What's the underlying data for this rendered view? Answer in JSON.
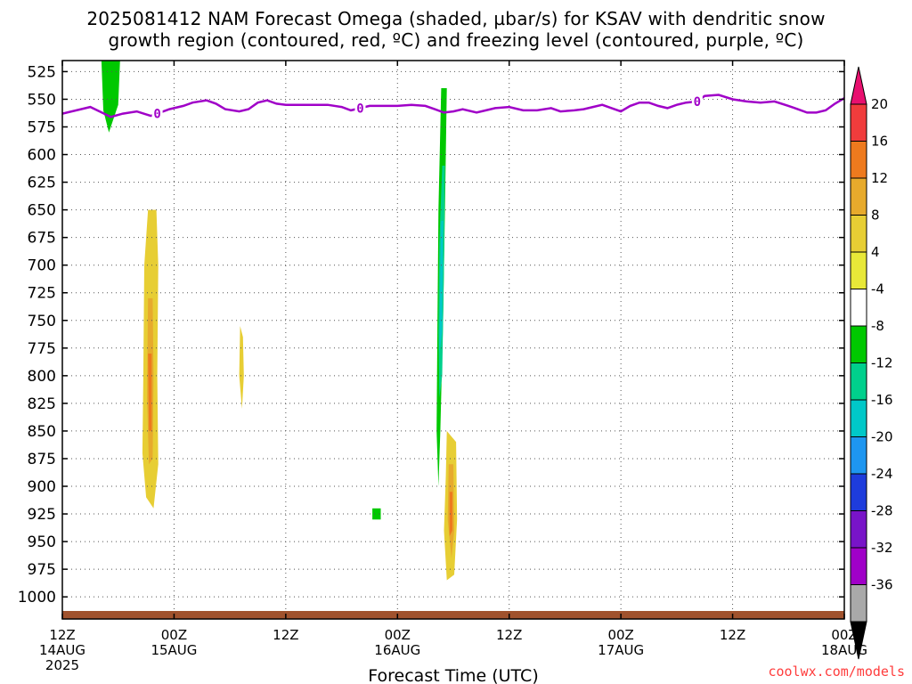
{
  "title": {
    "line1": "2025081412 NAM Forecast Omega (shaded, µbar/s) for KSAV with dendritic snow",
    "line2": "growth region (contoured, red, ºC) and freezing level (contoured, purple, ºC)"
  },
  "credit": "coolwx.com/models",
  "colors": {
    "freezing_contour": "#a000c8",
    "ground": "#a0522d",
    "grid": "#555555"
  },
  "chart_data": {
    "type": "heatmap",
    "xlabel": "Forecast Time (UTC)",
    "ylabel": "",
    "pressure_levels": [
      "525",
      "550",
      "575",
      "600",
      "625",
      "650",
      "675",
      "700",
      "725",
      "750",
      "775",
      "800",
      "825",
      "850",
      "875",
      "900",
      "925",
      "950",
      "975",
      "1000"
    ],
    "ylim": [
      1020,
      515
    ],
    "x_ticks": [
      {
        "h": 0,
        "line1": "12Z",
        "line2": "14AUG",
        "line3": "2025"
      },
      {
        "h": 12,
        "line1": "00Z",
        "line2": "15AUG",
        "line3": ""
      },
      {
        "h": 24,
        "line1": "12Z",
        "line2": "",
        "line3": ""
      },
      {
        "h": 36,
        "line1": "00Z",
        "line2": "16AUG",
        "line3": ""
      },
      {
        "h": 48,
        "line1": "12Z",
        "line2": "",
        "line3": ""
      },
      {
        "h": 60,
        "line1": "00Z",
        "line2": "17AUG",
        "line3": ""
      },
      {
        "h": 72,
        "line1": "12Z",
        "line2": "",
        "line3": ""
      },
      {
        "h": 84,
        "line1": "00Z",
        "line2": "18AUG",
        "line3": ""
      }
    ],
    "xlim_hours": [
      0,
      84
    ],
    "colorbar": {
      "levels": [
        "20",
        "16",
        "12",
        "8",
        "4",
        "-4",
        "-8",
        "-12",
        "-16",
        "-20",
        "-24",
        "-28",
        "-32",
        "-36"
      ],
      "colors": [
        "#e8106f",
        "#f03c3c",
        "#ee7a1e",
        "#e7aa2c",
        "#e7ce34",
        "#e8e838",
        "#ffffff",
        "#00c800",
        "#00d08c",
        "#00c8c8",
        "#1e96f0",
        "#1e3cdc",
        "#7814c8",
        "#a000c8",
        "#a9a9a9",
        "#000000"
      ]
    },
    "freezing_level": {
      "label": "0",
      "label_hours": [
        10.2,
        32.0,
        68.2
      ],
      "points": [
        [
          0,
          563
        ],
        [
          1.5,
          560
        ],
        [
          3,
          557
        ],
        [
          4,
          561
        ],
        [
          5.2,
          566
        ],
        [
          6.5,
          563
        ],
        [
          8,
          561
        ],
        [
          9.5,
          565
        ],
        [
          10.2,
          563
        ],
        [
          11.5,
          559
        ],
        [
          13,
          556
        ],
        [
          14,
          553
        ],
        [
          15.5,
          551
        ],
        [
          16.5,
          554
        ],
        [
          17.5,
          559
        ],
        [
          19,
          561
        ],
        [
          20,
          559
        ],
        [
          21,
          553
        ],
        [
          22,
          551
        ],
        [
          23,
          554
        ],
        [
          24,
          555
        ],
        [
          25.5,
          555
        ],
        [
          27,
          555
        ],
        [
          28.5,
          555
        ],
        [
          30,
          557
        ],
        [
          31,
          560
        ],
        [
          32,
          558
        ],
        [
          33,
          556
        ],
        [
          34.5,
          556
        ],
        [
          36,
          556
        ],
        [
          37.5,
          555
        ],
        [
          39,
          556
        ],
        [
          40,
          559
        ],
        [
          41,
          562
        ],
        [
          42,
          561
        ],
        [
          43,
          559
        ],
        [
          44.5,
          562
        ],
        [
          45.5,
          560
        ],
        [
          46.5,
          558
        ],
        [
          48,
          557
        ],
        [
          49.5,
          560
        ],
        [
          51,
          560
        ],
        [
          52.5,
          558
        ],
        [
          53.5,
          561
        ],
        [
          55,
          560
        ],
        [
          56,
          559
        ],
        [
          57,
          557
        ],
        [
          58,
          555
        ],
        [
          59,
          558
        ],
        [
          60,
          561
        ],
        [
          61,
          556
        ],
        [
          62,
          553
        ],
        [
          63,
          553
        ],
        [
          64,
          556
        ],
        [
          65,
          558
        ],
        [
          66,
          555
        ],
        [
          67,
          553
        ],
        [
          68.2,
          552
        ],
        [
          69,
          547
        ],
        [
          70.5,
          546
        ],
        [
          72,
          550
        ],
        [
          73.5,
          552
        ],
        [
          75,
          553
        ],
        [
          76.5,
          552
        ],
        [
          78,
          556
        ],
        [
          79,
          559
        ],
        [
          80,
          562
        ],
        [
          81,
          562
        ],
        [
          82,
          560
        ],
        [
          83,
          554
        ],
        [
          84,
          549
        ]
      ]
    },
    "omega_regions": [
      {
        "value": -8,
        "pts": [
          [
            3,
            515
          ],
          [
            6.5,
            515
          ],
          [
            6.2,
            560
          ],
          [
            5.5,
            600
          ],
          [
            4.5,
            650
          ],
          [
            3.5,
            700
          ],
          [
            3.2,
            750
          ],
          [
            3.0,
            800
          ],
          [
            3.0,
            850
          ],
          [
            2.8,
            875
          ],
          [
            2.4,
            850
          ],
          [
            2.2,
            800
          ],
          [
            2.0,
            750
          ],
          [
            2.0,
            700
          ],
          [
            2.2,
            650
          ],
          [
            2.6,
            600
          ],
          [
            2.9,
            550
          ]
        ]
      },
      {
        "value": -12,
        "pts": [
          [
            4.2,
            515
          ],
          [
            6.2,
            515
          ],
          [
            6.0,
            555
          ],
          [
            5.0,
            580
          ],
          [
            4.4,
            560
          ]
        ]
      },
      {
        "value": -8,
        "pts": [
          [
            7.8,
            570
          ],
          [
            8.3,
            568
          ],
          [
            8.0,
            640
          ],
          [
            7.6,
            600
          ]
        ]
      },
      {
        "value": 4,
        "pts": [
          [
            9.2,
            650
          ],
          [
            10.1,
            650
          ],
          [
            10.3,
            700
          ],
          [
            10.2,
            800
          ],
          [
            10.3,
            880
          ],
          [
            9.8,
            920
          ],
          [
            9.0,
            910
          ],
          [
            8.6,
            870
          ],
          [
            8.7,
            800
          ],
          [
            8.8,
            700
          ]
        ]
      },
      {
        "value": 8,
        "pts": [
          [
            9.2,
            730
          ],
          [
            9.7,
            730
          ],
          [
            9.8,
            800
          ],
          [
            9.7,
            875
          ],
          [
            9.3,
            880
          ],
          [
            9.1,
            820
          ]
        ]
      },
      {
        "value": 12,
        "pts": [
          [
            9.2,
            780
          ],
          [
            9.6,
            780
          ],
          [
            9.6,
            850
          ],
          [
            9.3,
            850
          ]
        ]
      },
      {
        "value": -8,
        "pts": [
          [
            14.1,
            880
          ],
          [
            14.4,
            880
          ],
          [
            14.4,
            920
          ],
          [
            14.1,
            920
          ]
        ]
      },
      {
        "value": -8,
        "pts": [
          [
            16.1,
            730
          ],
          [
            16.3,
            730
          ],
          [
            16.3,
            760
          ],
          [
            16.1,
            760
          ]
        ]
      },
      {
        "value": 4,
        "pts": [
          [
            19.1,
            755
          ],
          [
            19.4,
            765
          ],
          [
            19.5,
            800
          ],
          [
            19.3,
            830
          ],
          [
            19.0,
            800
          ]
        ]
      },
      {
        "value": -8,
        "pts": [
          [
            33.0,
            880
          ],
          [
            34.5,
            850
          ],
          [
            35.3,
            900
          ],
          [
            35.2,
            950
          ],
          [
            34.5,
            985
          ],
          [
            33.5,
            985
          ],
          [
            32.8,
            950
          ],
          [
            32.6,
            910
          ]
        ]
      },
      {
        "value": -12,
        "pts": [
          [
            33.3,
            920
          ],
          [
            34.2,
            920
          ],
          [
            34.2,
            930
          ],
          [
            33.3,
            930
          ]
        ]
      },
      {
        "value": -8,
        "pts": [
          [
            40.2,
            515
          ],
          [
            41.7,
            515
          ],
          [
            41.6,
            600
          ],
          [
            41.2,
            700
          ],
          [
            41.0,
            800
          ],
          [
            40.8,
            850
          ],
          [
            41.2,
            900
          ],
          [
            41.1,
            930
          ],
          [
            40.6,
            970
          ],
          [
            39.9,
            950
          ],
          [
            39.7,
            900
          ],
          [
            40.0,
            850
          ],
          [
            39.9,
            800
          ],
          [
            39.8,
            700
          ],
          [
            39.9,
            600
          ]
        ]
      },
      {
        "value": -12,
        "pts": [
          [
            40.7,
            540
          ],
          [
            41.3,
            540
          ],
          [
            41.1,
            650
          ],
          [
            40.9,
            750
          ],
          [
            40.6,
            850
          ],
          [
            40.4,
            900
          ],
          [
            40.2,
            850
          ],
          [
            40.3,
            750
          ],
          [
            40.4,
            650
          ]
        ]
      },
      {
        "value": -16,
        "pts": [
          [
            40.8,
            610
          ],
          [
            41.1,
            610
          ],
          [
            41.0,
            700
          ],
          [
            40.8,
            800
          ],
          [
            40.5,
            820
          ],
          [
            40.4,
            760
          ],
          [
            40.5,
            680
          ]
        ]
      },
      {
        "value": -20,
        "pts": [
          [
            40.7,
            660
          ],
          [
            40.9,
            660
          ],
          [
            40.8,
            760
          ],
          [
            40.5,
            780
          ],
          [
            40.6,
            700
          ]
        ]
      },
      {
        "value": 4,
        "pts": [
          [
            41.3,
            850
          ],
          [
            42.3,
            860
          ],
          [
            42.4,
            930
          ],
          [
            42.1,
            980
          ],
          [
            41.3,
            985
          ],
          [
            41.0,
            940
          ],
          [
            41.2,
            890
          ]
        ]
      },
      {
        "value": 8,
        "pts": [
          [
            41.5,
            880
          ],
          [
            42.0,
            880
          ],
          [
            42.1,
            940
          ],
          [
            41.8,
            965
          ],
          [
            41.4,
            930
          ]
        ]
      },
      {
        "value": 12,
        "pts": [
          [
            41.6,
            905
          ],
          [
            41.9,
            905
          ],
          [
            41.9,
            940
          ],
          [
            41.6,
            945
          ]
        ]
      },
      {
        "value": -8,
        "pts": [
          [
            55.4,
            880
          ],
          [
            56.0,
            880
          ],
          [
            56.2,
            920
          ],
          [
            56.1,
            955
          ],
          [
            55.5,
            950
          ],
          [
            55.3,
            915
          ]
        ]
      },
      {
        "value": -8,
        "pts": [
          [
            56.6,
            690
          ],
          [
            57.4,
            675
          ],
          [
            57.3,
            750
          ],
          [
            56.9,
            790
          ],
          [
            56.6,
            750
          ]
        ]
      }
    ]
  }
}
